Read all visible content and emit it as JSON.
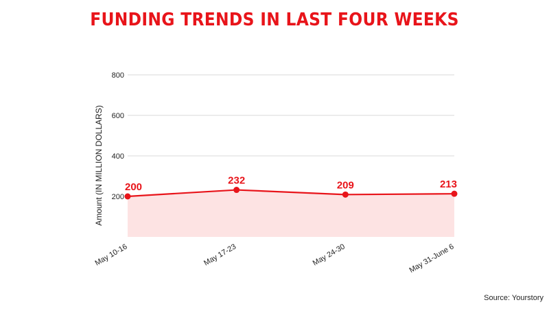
{
  "chart_data": {
    "type": "area",
    "title": "FUNDING TRENDS IN LAST FOUR WEEKS",
    "categories": [
      "May 10-16",
      "May 17-23",
      "May 24-30",
      "May 31-June 6"
    ],
    "values": [
      200,
      232,
      209,
      213
    ],
    "data_labels": [
      "200",
      "232",
      "209",
      "213"
    ],
    "ylabel": "Amount (IN MILLION DOLLARS)",
    "xlabel": "",
    "ylim": [
      0,
      800
    ],
    "yticks": [
      200,
      400,
      600,
      800
    ],
    "grid": true,
    "source": "Source: Yourstory",
    "colors": {
      "line": "#e8141a",
      "fill": "#fde3e3",
      "grid": "#d9d9d9"
    }
  }
}
